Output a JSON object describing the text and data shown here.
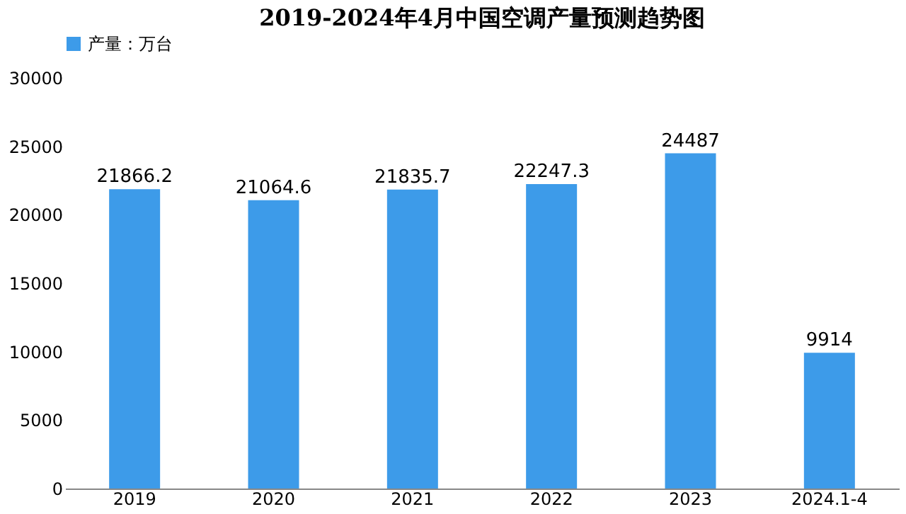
{
  "chart_data": {
    "type": "bar",
    "title": "2019-2024年4月中国空调产量预测趋势图",
    "categories": [
      "2019",
      "2020",
      "2021",
      "2022",
      "2023",
      "2024.1-4"
    ],
    "series": [
      {
        "name": "产量：万台",
        "color": "#3d9be9",
        "values": [
          21866.2,
          21064.6,
          21835.7,
          22247.3,
          24487,
          9914
        ]
      }
    ],
    "ylim": [
      0,
      30000
    ],
    "yticks": [
      0,
      5000,
      10000,
      15000,
      20000,
      25000,
      30000
    ],
    "data_labels": true,
    "grid": false,
    "legend": "top"
  }
}
